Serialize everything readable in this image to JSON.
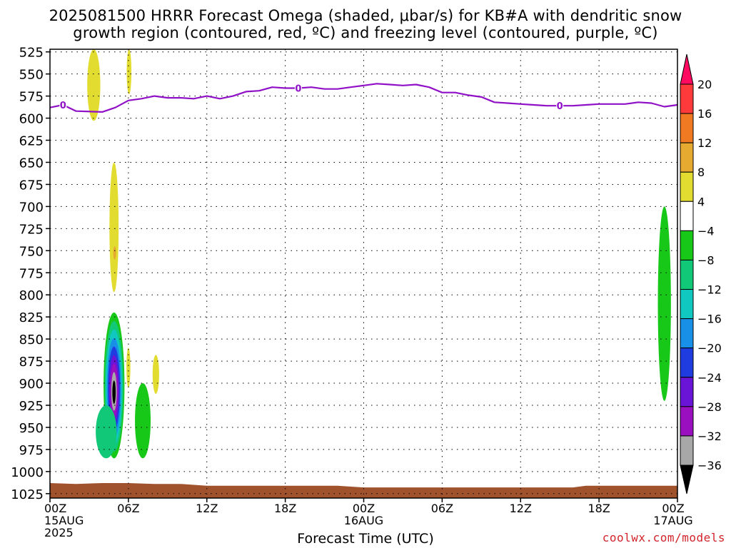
{
  "title": {
    "line1": "2025081500 HRRR Forecast Omega (shaded, μbar/s) for KB#A with dendritic snow",
    "line2": "growth region (contoured, red, ºC) and freezing level (contoured, purple, ºC)"
  },
  "credit": "coolwx.com/models",
  "chart_data": {
    "type": "heatmap",
    "xlabel": "Forecast Time (UTC)",
    "ylabel": "",
    "x_unit": "hours since 2025-08-15 00Z",
    "xlim": [
      0,
      48
    ],
    "ylim": [
      1030,
      522
    ],
    "y_ticks": [
      525,
      550,
      575,
      600,
      625,
      650,
      675,
      700,
      725,
      750,
      775,
      800,
      825,
      850,
      875,
      900,
      925,
      950,
      975,
      1000,
      1025
    ],
    "x_ticks": [
      {
        "x": 0,
        "lines": [
          "00Z",
          "15AUG",
          "2025"
        ]
      },
      {
        "x": 6,
        "lines": [
          "06Z"
        ]
      },
      {
        "x": 12,
        "lines": [
          "12Z"
        ]
      },
      {
        "x": 18,
        "lines": [
          "18Z"
        ]
      },
      {
        "x": 24,
        "lines": [
          "00Z",
          "16AUG"
        ]
      },
      {
        "x": 30,
        "lines": [
          "06Z"
        ]
      },
      {
        "x": 36,
        "lines": [
          "12Z"
        ]
      },
      {
        "x": 42,
        "lines": [
          "18Z"
        ]
      },
      {
        "x": 48,
        "lines": [
          "00Z",
          "17AUG"
        ]
      }
    ],
    "grid": true,
    "colorbar": {
      "labels": [
        "20",
        "16",
        "12",
        "8",
        "4",
        "−4",
        "−8",
        "−12",
        "−16",
        "−20",
        "−24",
        "−28",
        "−32",
        "−36"
      ],
      "colors": [
        "#ff0a60",
        "#ff3a3a",
        "#f07a22",
        "#e6aa30",
        "#e2dc30",
        "#ffffff",
        "#18c818",
        "#10c878",
        "#10c8c0",
        "#1890e8",
        "#1e3ce0",
        "#6a14d8",
        "#9a10c0",
        "#a8a8a8",
        "#000000"
      ]
    },
    "freezing_level": {
      "color": "#9010c8",
      "label": "0",
      "points": [
        [
          0,
          588
        ],
        [
          1,
          585
        ],
        [
          2,
          592
        ],
        [
          4,
          593
        ],
        [
          5,
          588
        ],
        [
          6,
          580
        ],
        [
          7,
          578
        ],
        [
          8,
          575
        ],
        [
          9,
          577
        ],
        [
          10,
          577
        ],
        [
          11,
          578
        ],
        [
          12,
          575
        ],
        [
          13,
          578
        ],
        [
          14,
          575
        ],
        [
          15,
          570
        ],
        [
          16,
          569
        ],
        [
          17,
          565
        ],
        [
          18,
          566
        ],
        [
          19,
          566
        ],
        [
          20,
          565
        ],
        [
          21,
          567
        ],
        [
          22,
          567
        ],
        [
          23,
          565
        ],
        [
          24,
          563
        ],
        [
          25,
          561
        ],
        [
          26,
          562
        ],
        [
          27,
          563
        ],
        [
          28,
          562
        ],
        [
          29,
          565
        ],
        [
          30,
          571
        ],
        [
          31,
          571
        ],
        [
          32,
          574
        ],
        [
          33,
          576
        ],
        [
          34,
          582
        ],
        [
          35,
          583
        ],
        [
          36,
          584
        ],
        [
          37,
          585
        ],
        [
          38,
          586
        ],
        [
          39,
          586
        ],
        [
          40,
          586
        ],
        [
          41,
          585
        ],
        [
          42,
          584
        ],
        [
          43,
          584
        ],
        [
          44,
          584
        ],
        [
          45,
          582
        ],
        [
          46,
          583
        ],
        [
          47,
          587
        ],
        [
          48,
          585
        ]
      ]
    },
    "surface": {
      "color": "#a0522d",
      "points": [
        [
          0,
          1013
        ],
        [
          2,
          1014
        ],
        [
          4,
          1013
        ],
        [
          6,
          1013
        ],
        [
          8,
          1014
        ],
        [
          10,
          1014
        ],
        [
          12,
          1016
        ],
        [
          14,
          1016
        ],
        [
          16,
          1016
        ],
        [
          18,
          1016
        ],
        [
          20,
          1016
        ],
        [
          22,
          1016
        ],
        [
          24,
          1018
        ],
        [
          26,
          1018
        ],
        [
          28,
          1018
        ],
        [
          30,
          1018
        ],
        [
          32,
          1018
        ],
        [
          34,
          1018
        ],
        [
          36,
          1018
        ],
        [
          38,
          1018
        ],
        [
          40,
          1018
        ],
        [
          41,
          1016
        ],
        [
          43,
          1016
        ],
        [
          46,
          1016
        ],
        [
          48,
          1016
        ]
      ]
    },
    "omega_features": [
      {
        "name": "ascent-top-a",
        "x": 3.35,
        "y_top": 522,
        "y_bottom": 603,
        "half_width": 0.5,
        "value": 4
      },
      {
        "name": "ascent-top-b",
        "x": 6.05,
        "y_top": 522,
        "y_bottom": 573,
        "half_width": 0.18,
        "value": 4
      },
      {
        "name": "ascent-mid",
        "x": 4.9,
        "y_top": 650,
        "y_bottom": 797,
        "half_width": 0.35,
        "value": 4
      },
      {
        "name": "ascent-mid-core",
        "x": 4.95,
        "y_top": 745,
        "y_bottom": 760,
        "half_width": 0.06,
        "value": 8
      },
      {
        "name": "ascent-low",
        "x": 6.0,
        "y_top": 860,
        "y_bottom": 905,
        "half_width": 0.15,
        "value": 4
      },
      {
        "name": "ascent-low-b",
        "x": 8.1,
        "y_top": 868,
        "y_bottom": 912,
        "half_width": 0.25,
        "value": 4
      },
      {
        "name": "descent-core",
        "x": 4.9,
        "y_top": 820,
        "y_bottom": 985,
        "half_width": 0.8,
        "min_value": -36
      },
      {
        "name": "descent-low-left",
        "x": 4.3,
        "y_top": 925,
        "y_bottom": 985,
        "half_width": 0.8,
        "value": -8
      },
      {
        "name": "descent-low-right",
        "x": 7.1,
        "y_top": 900,
        "y_bottom": 985,
        "half_width": 0.6,
        "value": -4
      },
      {
        "name": "descent-right",
        "x": 47.0,
        "y_top": 700,
        "y_bottom": 920,
        "half_width": 0.5,
        "value": -4
      }
    ]
  },
  "xlabel_text": "Forecast Time (UTC)"
}
